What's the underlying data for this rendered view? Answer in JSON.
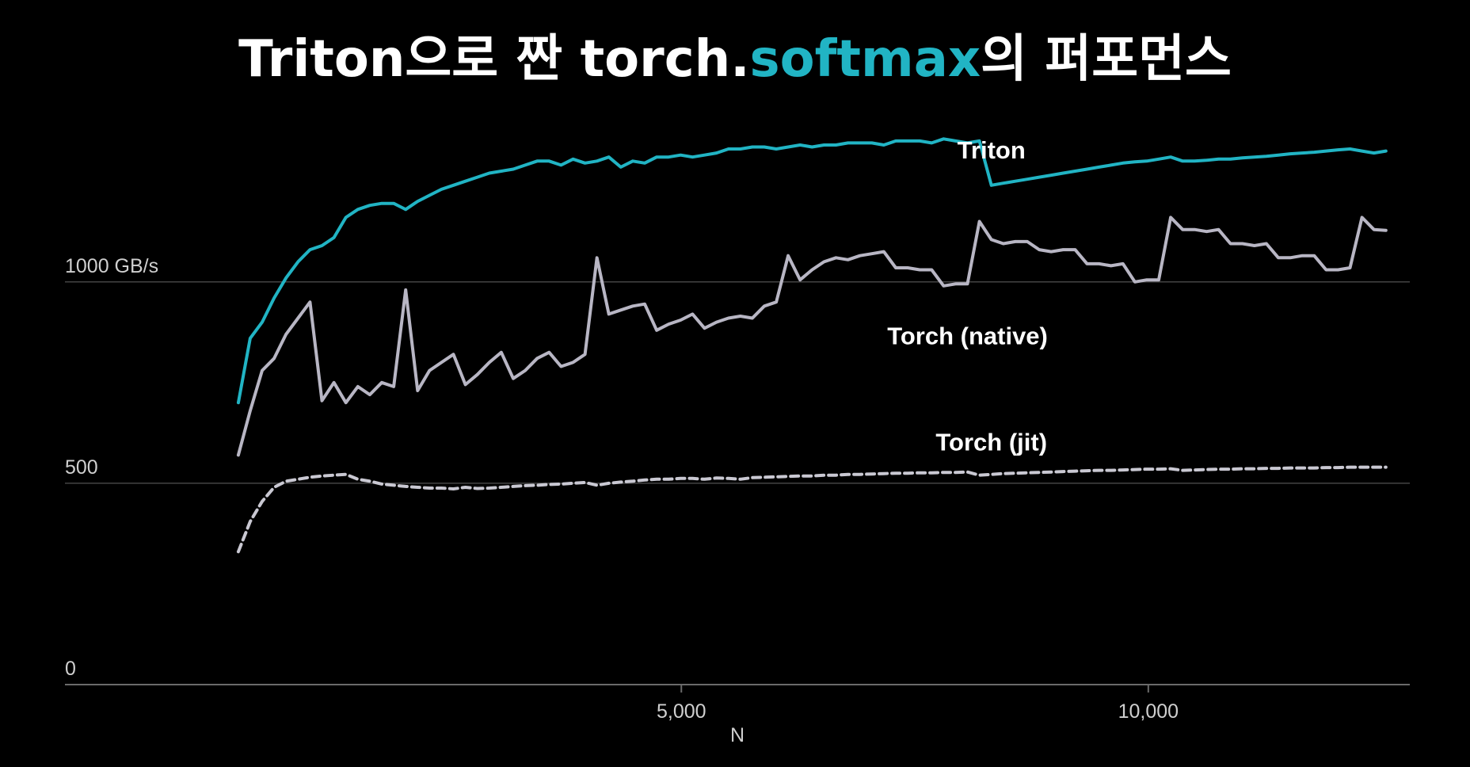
{
  "title": {
    "prefix": "Triton으로 짠 torch.",
    "highlight": "softmax",
    "suffix": "의 퍼포먼스"
  },
  "colors": {
    "triton": "#21b4c4",
    "native": "#b8b6c4",
    "jit": "#c9c8d2",
    "gridline": "#444444",
    "background": "#000000"
  },
  "chart_data": {
    "type": "line",
    "title": "Triton으로 짠 torch.softmax의 퍼포먼스",
    "xlabel": "N",
    "ylabel": "",
    "xlim": [
      -1600,
      12800
    ],
    "ylim": [
      0,
      1700
    ],
    "x_ticks": [
      {
        "value": 5000,
        "label": "5,000"
      },
      {
        "value": 10000,
        "label": "10,000"
      }
    ],
    "y_ticks": [
      {
        "value": 0,
        "label": "0"
      },
      {
        "value": 500,
        "label": "500"
      },
      {
        "value": 1000,
        "label": "1000 GB/s"
      }
    ],
    "grid": "horizontal",
    "legend": "inline labels",
    "series": [
      {
        "name": "Triton",
        "style": "solid",
        "x": [
          256,
          384,
          512,
          640,
          768,
          896,
          1024,
          1152,
          1280,
          1408,
          1536,
          1664,
          1792,
          1920,
          2048,
          2176,
          2304,
          2432,
          2560,
          2688,
          2816,
          2944,
          3072,
          3200,
          3328,
          3456,
          3584,
          3712,
          3840,
          3968,
          4096,
          4224,
          4352,
          4480,
          4608,
          4736,
          4864,
          4992,
          5120,
          5248,
          5376,
          5504,
          5632,
          5760,
          5888,
          6016,
          6144,
          6272,
          6400,
          6528,
          6656,
          6784,
          6912,
          7040,
          7168,
          7296,
          7424,
          7552,
          7680,
          7808,
          7936,
          8064,
          8192,
          8320,
          8448,
          8576,
          8704,
          8832,
          8960,
          9088,
          9216,
          9344,
          9472,
          9600,
          9728,
          9856,
          9984,
          10112,
          10240,
          10368,
          10496,
          10624,
          10752,
          10880,
          11008,
          11136,
          11264,
          11392,
          11520,
          11648,
          11776,
          11904,
          12032,
          12160,
          12288,
          12416,
          12544
        ],
        "y": [
          700,
          860,
          900,
          960,
          1010,
          1050,
          1080,
          1090,
          1110,
          1160,
          1180,
          1190,
          1195,
          1195,
          1180,
          1200,
          1215,
          1230,
          1240,
          1250,
          1260,
          1270,
          1275,
          1280,
          1290,
          1300,
          1300,
          1290,
          1305,
          1295,
          1300,
          1310,
          1285,
          1300,
          1295,
          1310,
          1310,
          1315,
          1310,
          1315,
          1320,
          1330,
          1330,
          1335,
          1335,
          1330,
          1335,
          1340,
          1335,
          1340,
          1340,
          1345,
          1345,
          1345,
          1340,
          1350,
          1350,
          1350,
          1345,
          1355,
          1350,
          1345,
          1350,
          1240,
          1245,
          1250,
          1255,
          1260,
          1265,
          1270,
          1275,
          1280,
          1285,
          1290,
          1295,
          1298,
          1300,
          1305,
          1310,
          1300,
          1300,
          1302,
          1305,
          1305,
          1308,
          1310,
          1312,
          1315,
          1318,
          1320,
          1322,
          1325,
          1328,
          1330,
          1325,
          1320,
          1325
        ]
      },
      {
        "name": "Torch (native)",
        "style": "solid",
        "x": [
          256,
          384,
          512,
          640,
          768,
          896,
          1024,
          1152,
          1280,
          1408,
          1536,
          1664,
          1792,
          1920,
          2048,
          2176,
          2304,
          2432,
          2560,
          2688,
          2816,
          2944,
          3072,
          3200,
          3328,
          3456,
          3584,
          3712,
          3840,
          3968,
          4096,
          4224,
          4352,
          4480,
          4608,
          4736,
          4864,
          4992,
          5120,
          5248,
          5376,
          5504,
          5632,
          5760,
          5888,
          6016,
          6144,
          6272,
          6400,
          6528,
          6656,
          6784,
          6912,
          7040,
          7168,
          7296,
          7424,
          7552,
          7680,
          7808,
          7936,
          8064,
          8192,
          8320,
          8448,
          8576,
          8704,
          8832,
          8960,
          9088,
          9216,
          9344,
          9472,
          9600,
          9728,
          9856,
          9984,
          10112,
          10240,
          10368,
          10496,
          10624,
          10752,
          10880,
          11008,
          11136,
          11264,
          11392,
          11520,
          11648,
          11776,
          11904,
          12032,
          12160,
          12288,
          12416,
          12544
        ],
        "y": [
          570,
          680,
          780,
          810,
          870,
          910,
          950,
          705,
          750,
          700,
          740,
          720,
          750,
          740,
          980,
          730,
          780,
          800,
          820,
          745,
          770,
          800,
          825,
          760,
          780,
          810,
          825,
          790,
          800,
          820,
          1060,
          920,
          930,
          940,
          945,
          880,
          895,
          905,
          920,
          885,
          900,
          910,
          915,
          910,
          940,
          950,
          1065,
          1005,
          1030,
          1050,
          1060,
          1055,
          1065,
          1070,
          1075,
          1035,
          1035,
          1030,
          1030,
          990,
          995,
          995,
          1150,
          1105,
          1095,
          1100,
          1100,
          1080,
          1075,
          1080,
          1080,
          1045,
          1045,
          1040,
          1045,
          1000,
          1005,
          1005,
          1160,
          1130,
          1130,
          1125,
          1130,
          1095,
          1095,
          1090,
          1095,
          1060,
          1060,
          1065,
          1065,
          1030,
          1030,
          1035,
          1160,
          1130,
          1128
        ]
      },
      {
        "name": "Torch (jit)",
        "style": "dashed",
        "x": [
          256,
          384,
          512,
          640,
          768,
          896,
          1024,
          1152,
          1280,
          1408,
          1536,
          1664,
          1792,
          1920,
          2048,
          2176,
          2304,
          2432,
          2560,
          2688,
          2816,
          2944,
          3072,
          3200,
          3328,
          3456,
          3584,
          3712,
          3840,
          3968,
          4096,
          4224,
          4352,
          4480,
          4608,
          4736,
          4864,
          4992,
          5120,
          5248,
          5376,
          5504,
          5632,
          5760,
          5888,
          6016,
          6144,
          6272,
          6400,
          6528,
          6656,
          6784,
          6912,
          7040,
          7168,
          7296,
          7424,
          7552,
          7680,
          7808,
          7936,
          8064,
          8192,
          8320,
          8448,
          8576,
          8704,
          8832,
          8960,
          9088,
          9216,
          9344,
          9472,
          9600,
          9728,
          9856,
          9984,
          10112,
          10240,
          10368,
          10496,
          10624,
          10752,
          10880,
          11008,
          11136,
          11264,
          11392,
          11520,
          11648,
          11776,
          11904,
          12032,
          12160,
          12288,
          12416,
          12544
        ],
        "y": [
          330,
          405,
          455,
          490,
          505,
          510,
          515,
          518,
          520,
          522,
          510,
          505,
          498,
          495,
          492,
          490,
          488,
          488,
          486,
          490,
          487,
          488,
          490,
          492,
          494,
          495,
          497,
          498,
          500,
          502,
          495,
          500,
          503,
          505,
          508,
          510,
          510,
          512,
          512,
          510,
          513,
          512,
          510,
          514,
          515,
          516,
          517,
          518,
          518,
          520,
          520,
          522,
          522,
          523,
          524,
          525,
          525,
          526,
          526,
          527,
          527,
          528,
          520,
          522,
          524,
          525,
          526,
          527,
          528,
          529,
          530,
          531,
          532,
          532,
          533,
          534,
          535,
          535,
          536,
          532,
          533,
          534,
          535,
          535,
          536,
          536,
          537,
          537,
          538,
          538,
          538,
          539,
          539,
          540,
          540,
          540,
          540
        ]
      }
    ]
  }
}
